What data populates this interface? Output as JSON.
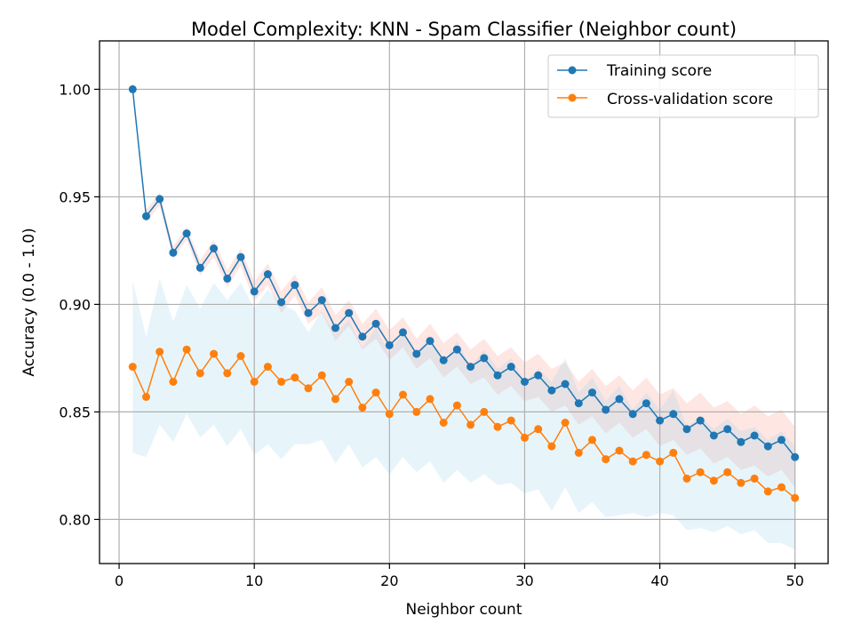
{
  "chart_data": {
    "type": "line",
    "title": "Model Complexity: KNN - Spam Classifier (Neighbor count)",
    "xlabel": "Neighbor count",
    "ylabel": "Accuracy (0.0 - 1.0)",
    "xlim": [
      -1.45,
      52.45
    ],
    "ylim": [
      0.7795,
      1.0225
    ],
    "xticks": [
      0,
      10,
      20,
      30,
      40,
      50
    ],
    "xtick_labels": [
      "0",
      "10",
      "20",
      "30",
      "40",
      "50"
    ],
    "yticks": [
      0.8,
      0.85,
      0.9,
      0.95,
      1.0
    ],
    "ytick_labels": [
      "0.80",
      "0.85",
      "0.90",
      "0.95",
      "1.00"
    ],
    "grid": true,
    "legend_position": "top-right",
    "x": [
      1,
      2,
      3,
      4,
      5,
      6,
      7,
      8,
      9,
      10,
      11,
      12,
      13,
      14,
      15,
      16,
      17,
      18,
      19,
      20,
      21,
      22,
      23,
      24,
      25,
      26,
      27,
      28,
      29,
      30,
      31,
      32,
      33,
      34,
      35,
      36,
      37,
      38,
      39,
      40,
      41,
      42,
      43,
      44,
      45,
      46,
      47,
      48,
      49,
      50
    ],
    "series": [
      {
        "name": "Training score",
        "color": "#1f77b4",
        "band_color": "#fa8072",
        "values": [
          1.0,
          0.941,
          0.949,
          0.924,
          0.933,
          0.917,
          0.926,
          0.912,
          0.922,
          0.906,
          0.914,
          0.901,
          0.909,
          0.896,
          0.902,
          0.889,
          0.896,
          0.885,
          0.891,
          0.881,
          0.887,
          0.877,
          0.883,
          0.874,
          0.879,
          0.871,
          0.875,
          0.867,
          0.871,
          0.864,
          0.867,
          0.86,
          0.863,
          0.854,
          0.859,
          0.851,
          0.856,
          0.849,
          0.854,
          0.846,
          0.849,
          0.842,
          0.846,
          0.839,
          0.842,
          0.836,
          0.839,
          0.834,
          0.837,
          0.829
        ],
        "band_half_width": [
          0.0,
          0.003,
          0.003,
          0.003,
          0.003,
          0.0035,
          0.004,
          0.004,
          0.004,
          0.0045,
          0.005,
          0.005,
          0.005,
          0.005,
          0.006,
          0.006,
          0.006,
          0.006,
          0.007,
          0.007,
          0.007,
          0.007,
          0.008,
          0.008,
          0.008,
          0.008,
          0.009,
          0.009,
          0.009,
          0.009,
          0.01,
          0.01,
          0.01,
          0.01,
          0.011,
          0.011,
          0.011,
          0.011,
          0.012,
          0.012,
          0.012,
          0.012,
          0.013,
          0.013,
          0.013,
          0.013,
          0.014,
          0.014,
          0.014,
          0.014
        ]
      },
      {
        "name": "Cross-validation score",
        "color": "#ff7f0e",
        "band_color": "#87ceeb",
        "values": [
          0.871,
          0.857,
          0.878,
          0.864,
          0.879,
          0.868,
          0.877,
          0.868,
          0.876,
          0.864,
          0.871,
          0.864,
          0.866,
          0.861,
          0.867,
          0.856,
          0.864,
          0.852,
          0.859,
          0.849,
          0.858,
          0.85,
          0.856,
          0.845,
          0.853,
          0.844,
          0.85,
          0.843,
          0.846,
          0.838,
          0.842,
          0.834,
          0.845,
          0.831,
          0.837,
          0.828,
          0.832,
          0.827,
          0.83,
          0.827,
          0.831,
          0.819,
          0.822,
          0.818,
          0.822,
          0.817,
          0.819,
          0.813,
          0.815,
          0.81
        ],
        "band_half_width": [
          0.04,
          0.028,
          0.034,
          0.028,
          0.03,
          0.03,
          0.033,
          0.034,
          0.034,
          0.034,
          0.036,
          0.036,
          0.031,
          0.026,
          0.03,
          0.03,
          0.029,
          0.028,
          0.03,
          0.028,
          0.029,
          0.028,
          0.029,
          0.028,
          0.03,
          0.027,
          0.029,
          0.027,
          0.029,
          0.026,
          0.028,
          0.03,
          0.03,
          0.028,
          0.029,
          0.027,
          0.03,
          0.024,
          0.029,
          0.024,
          0.029,
          0.024,
          0.026,
          0.024,
          0.025,
          0.024,
          0.024,
          0.024,
          0.026,
          0.024
        ]
      }
    ]
  }
}
